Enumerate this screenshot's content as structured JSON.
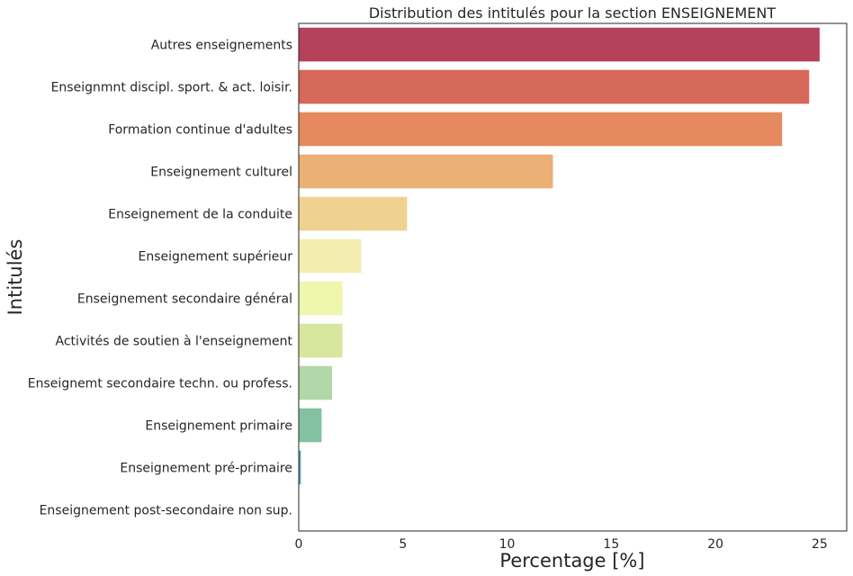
{
  "chart_data": {
    "type": "bar",
    "orientation": "horizontal",
    "title": "Distribution des intitulés pour la section ENSEIGNEMENT",
    "xlabel": "Percentage [%]",
    "ylabel": "Intitulés",
    "xlim": [
      0,
      26.3
    ],
    "xticks": [
      "0",
      "5",
      "10",
      "15",
      "20",
      "25"
    ],
    "grid": false,
    "categories": [
      "Autres enseignements",
      "Enseignmnt discipl. sport. & act. loisir.",
      "Formation continue d'adultes",
      "Enseignement culturel",
      "Enseignement de la conduite",
      "Enseignement supérieur",
      "Enseignement secondaire général",
      "Activités de soutien à l'enseignement",
      "Enseignemt secondaire techn. ou profess.",
      "Enseignement primaire",
      "Enseignement pré-primaire",
      "Enseignement post-secondaire non sup."
    ],
    "values": [
      25.0,
      24.5,
      23.2,
      12.2,
      5.2,
      3.0,
      2.1,
      2.1,
      1.6,
      1.1,
      0.1,
      0.0
    ],
    "colors": [
      "#b5415a",
      "#d6685a",
      "#e58a5f",
      "#eab076",
      "#f0d290",
      "#f3eeb0",
      "#eff6ad",
      "#d7e79e",
      "#b2d7a8",
      "#84c1a2",
      "#5a9ab8",
      "#5a6eb4"
    ]
  }
}
